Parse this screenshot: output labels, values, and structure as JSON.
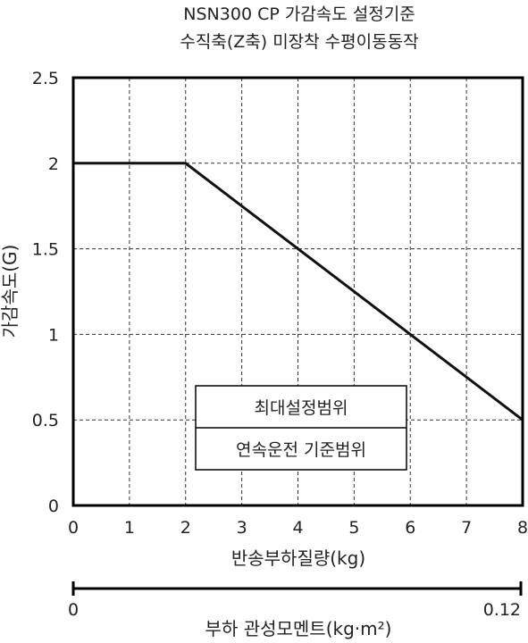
{
  "chart_data": {
    "type": "line",
    "title_line1": "NSN300 CP 가감속도 설정기준",
    "title_line2": "수직축(Z축) 미장착 수평이동동작",
    "xlabel": "반송부하질량(kg)",
    "ylabel": "가감속도(G)",
    "xlim": [
      0,
      8
    ],
    "ylim": [
      0,
      2.5
    ],
    "xticks": [
      "0",
      "1",
      "2",
      "3",
      "4",
      "5",
      "6",
      "7",
      "8"
    ],
    "yticks": [
      "0",
      "0.5",
      "1",
      "1.5",
      "2",
      "2.5"
    ],
    "grid": true,
    "series": [
      {
        "x": [
          0,
          2,
          8
        ],
        "y": [
          2,
          2,
          0.5
        ]
      }
    ],
    "legend": {
      "placement": "lower-center",
      "entries": [
        "최대설정범위",
        "연속운전 기준범위"
      ]
    },
    "secondary_axis": {
      "label": "부하 관성모멘트(kg·m²)",
      "min_label": "0",
      "max_label": "0.12"
    }
  }
}
